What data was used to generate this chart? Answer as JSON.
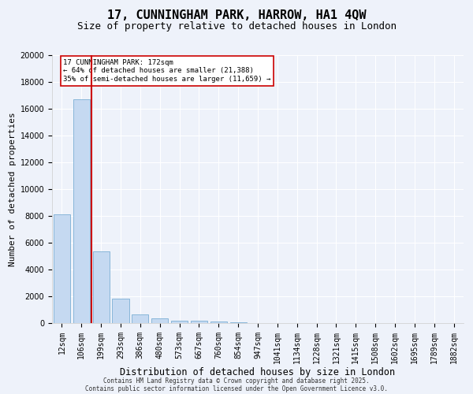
{
  "title": "17, CUNNINGHAM PARK, HARROW, HA1 4QW",
  "subtitle": "Size of property relative to detached houses in London",
  "xlabel": "Distribution of detached houses by size in London",
  "ylabel": "Number of detached properties",
  "categories": [
    "12sqm",
    "106sqm",
    "199sqm",
    "293sqm",
    "386sqm",
    "480sqm",
    "573sqm",
    "667sqm",
    "760sqm",
    "854sqm",
    "947sqm",
    "1041sqm",
    "1134sqm",
    "1228sqm",
    "1321sqm",
    "1415sqm",
    "1508sqm",
    "1602sqm",
    "1695sqm",
    "1789sqm",
    "1882sqm"
  ],
  "values": [
    8100,
    16700,
    5350,
    1850,
    650,
    350,
    200,
    150,
    100,
    40,
    10,
    5,
    3,
    2,
    1,
    1,
    1,
    0,
    0,
    0,
    0
  ],
  "bar_color": "#c5d9f1",
  "bar_edge_color": "#7bafd4",
  "red_line_color": "#cc0000",
  "ylim": [
    0,
    20000
  ],
  "yticks": [
    0,
    2000,
    4000,
    6000,
    8000,
    10000,
    12000,
    14000,
    16000,
    18000,
    20000
  ],
  "annotation_text": "17 CUNNINGHAM PARK: 172sqm\n← 64% of detached houses are smaller (21,388)\n35% of semi-detached houses are larger (11,659) →",
  "annotation_box_color": "#ffffff",
  "annotation_box_edge_color": "#cc0000",
  "background_color": "#eef2fa",
  "grid_color": "#ffffff",
  "footer_line1": "Contains HM Land Registry data © Crown copyright and database right 2025.",
  "footer_line2": "Contains public sector information licensed under the Open Government Licence v3.0.",
  "title_fontsize": 11,
  "subtitle_fontsize": 9,
  "tick_fontsize": 7,
  "ylabel_fontsize": 8,
  "xlabel_fontsize": 8.5,
  "footer_fontsize": 5.5
}
